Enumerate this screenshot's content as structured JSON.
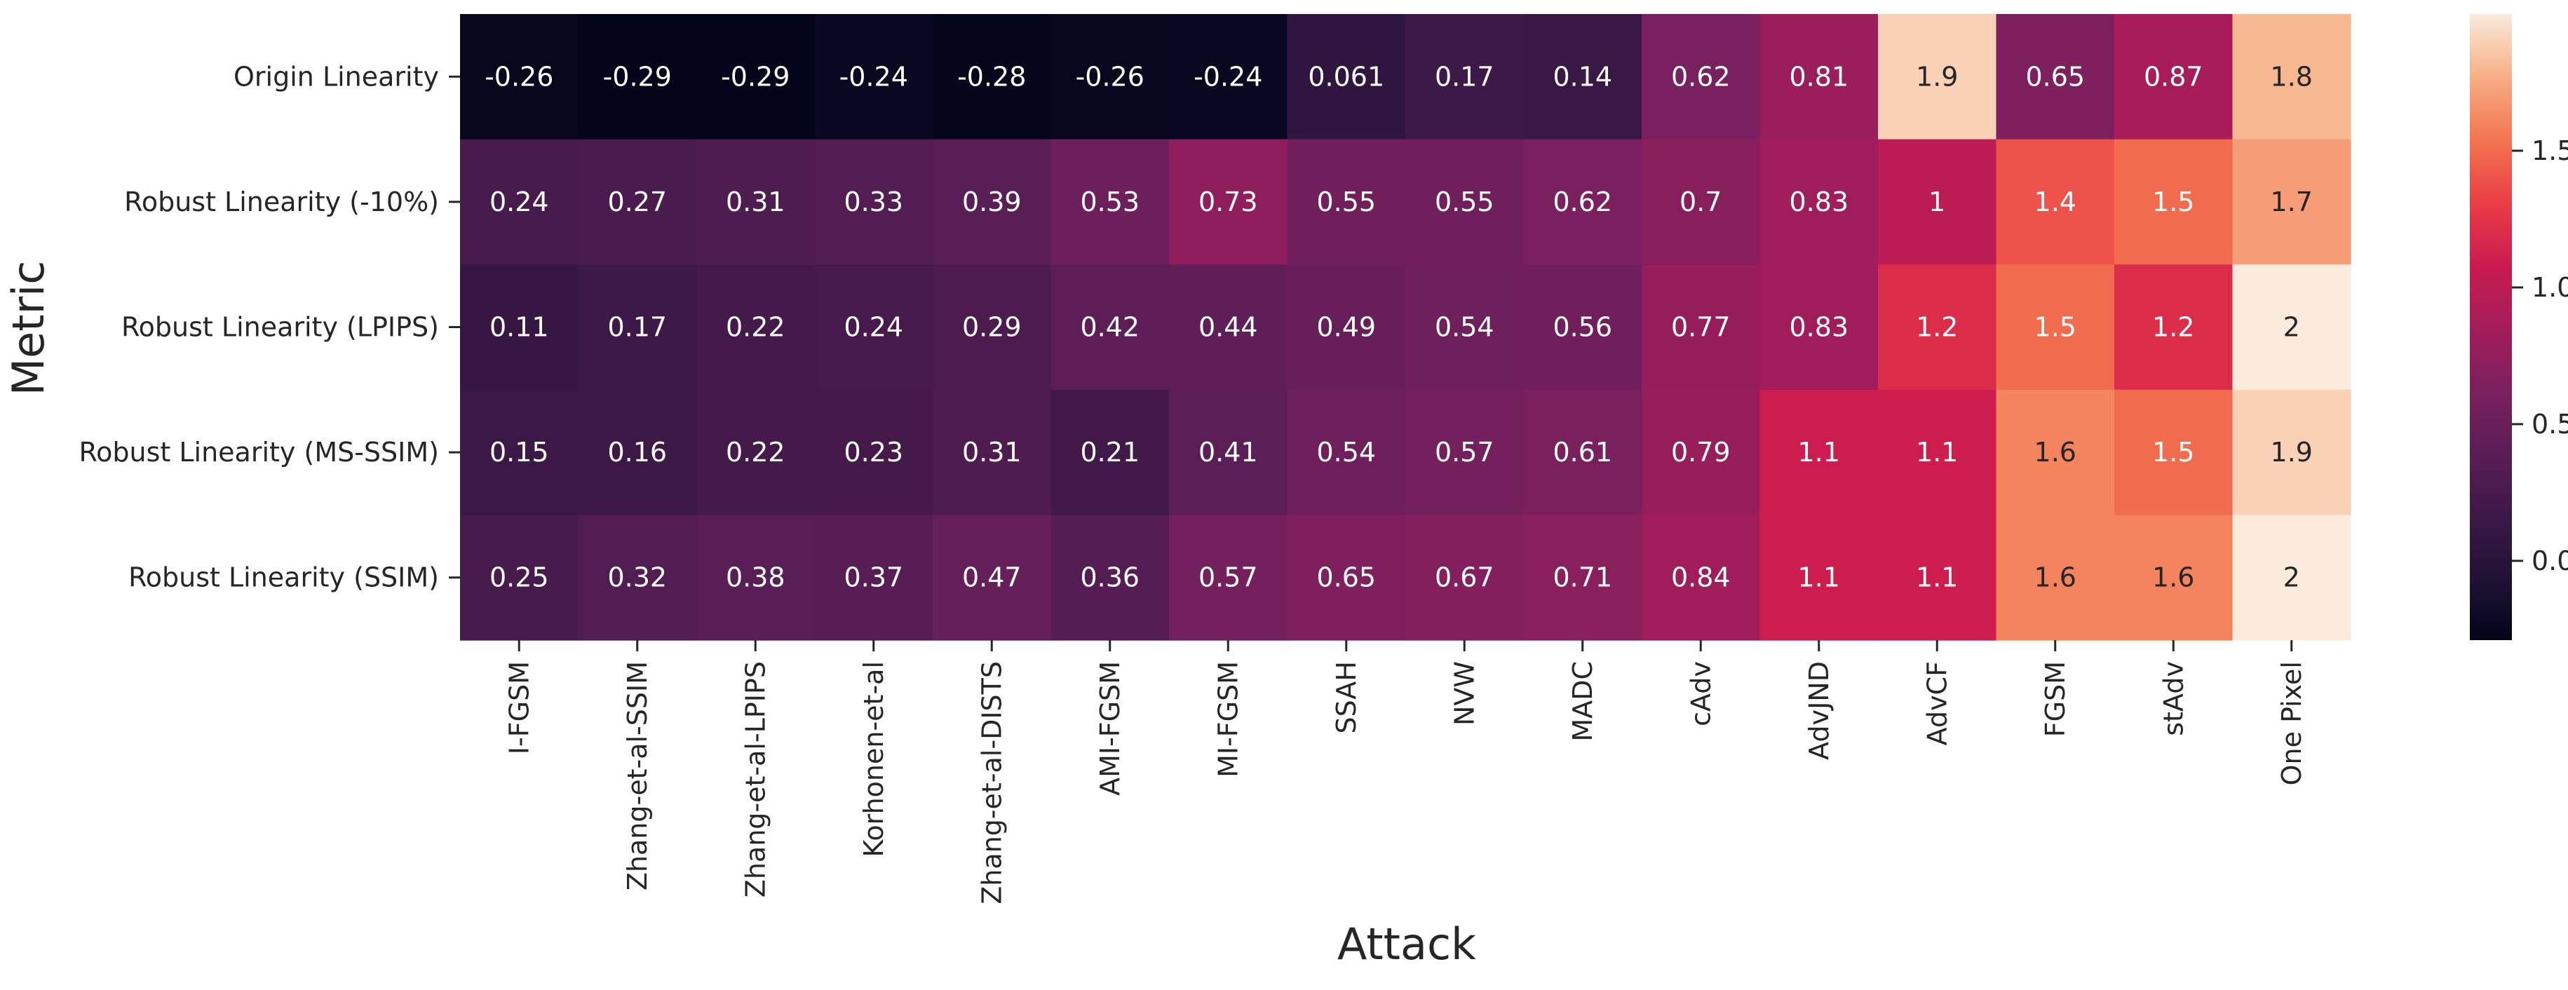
{
  "chart_data": {
    "type": "heatmap",
    "title": "",
    "xlabel": "Attack",
    "ylabel": "Metric",
    "x_categories": [
      "I-FGSM",
      "Zhang-et-al-SSIM",
      "Zhang-et-al-LPIPS",
      "Korhonen-et-al",
      "Zhang-et-al-DISTS",
      "AMI-FGSM",
      "MI-FGSM",
      "SSAH",
      "NVW",
      "MADC",
      "cAdv",
      "AdvJND",
      "AdvCF",
      "FGSM",
      "stAdv",
      "One Pixel"
    ],
    "y_categories": [
      "Origin Linearity",
      "Robust Linearity (-10%)",
      "Robust Linearity (LPIPS)",
      "Robust Linearity (MS-SSIM)",
      "Robust Linearity (SSIM)"
    ],
    "values": [
      [
        -0.26,
        -0.29,
        -0.29,
        -0.24,
        -0.28,
        -0.26,
        -0.24,
        0.061,
        0.17,
        0.14,
        0.62,
        0.81,
        1.9,
        0.65,
        0.87,
        1.8
      ],
      [
        0.24,
        0.27,
        0.31,
        0.33,
        0.39,
        0.53,
        0.73,
        0.55,
        0.55,
        0.62,
        0.7,
        0.83,
        1,
        1.4,
        1.5,
        1.7
      ],
      [
        0.11,
        0.17,
        0.22,
        0.24,
        0.29,
        0.42,
        0.44,
        0.49,
        0.54,
        0.56,
        0.77,
        0.83,
        1.2,
        1.5,
        1.2,
        2
      ],
      [
        0.15,
        0.16,
        0.22,
        0.23,
        0.31,
        0.21,
        0.41,
        0.54,
        0.57,
        0.61,
        0.79,
        1.1,
        1.1,
        1.6,
        1.5,
        1.9
      ],
      [
        0.25,
        0.32,
        0.38,
        0.37,
        0.47,
        0.36,
        0.57,
        0.65,
        0.67,
        0.71,
        0.84,
        1.1,
        1.1,
        1.6,
        1.6,
        2
      ]
    ],
    "value_labels": [
      [
        "-0.26",
        "-0.29",
        "-0.29",
        "-0.24",
        "-0.28",
        "-0.26",
        "-0.24",
        "0.061",
        "0.17",
        "0.14",
        "0.62",
        "0.81",
        "1.9",
        "0.65",
        "0.87",
        "1.8"
      ],
      [
        "0.24",
        "0.27",
        "0.31",
        "0.33",
        "0.39",
        "0.53",
        "0.73",
        "0.55",
        "0.55",
        "0.62",
        "0.7",
        "0.83",
        "1",
        "1.4",
        "1.5",
        "1.7"
      ],
      [
        "0.11",
        "0.17",
        "0.22",
        "0.24",
        "0.29",
        "0.42",
        "0.44",
        "0.49",
        "0.54",
        "0.56",
        "0.77",
        "0.83",
        "1.2",
        "1.5",
        "1.2",
        "2"
      ],
      [
        "0.15",
        "0.16",
        "0.22",
        "0.23",
        "0.31",
        "0.21",
        "0.41",
        "0.54",
        "0.57",
        "0.61",
        "0.79",
        "1.1",
        "1.1",
        "1.6",
        "1.5",
        "1.9"
      ],
      [
        "0.25",
        "0.32",
        "0.38",
        "0.37",
        "0.47",
        "0.36",
        "0.57",
        "0.65",
        "0.67",
        "0.71",
        "0.84",
        "1.1",
        "1.1",
        "1.6",
        "1.6",
        "2"
      ]
    ],
    "colorbar": {
      "min": -0.29,
      "max": 2.0,
      "ticks": [
        0.0,
        0.5,
        1.0,
        1.5
      ],
      "tick_labels": [
        "0.0",
        "0.5",
        "1.0",
        "1.5"
      ]
    },
    "colormap": "rocket",
    "legend_position": "right"
  }
}
